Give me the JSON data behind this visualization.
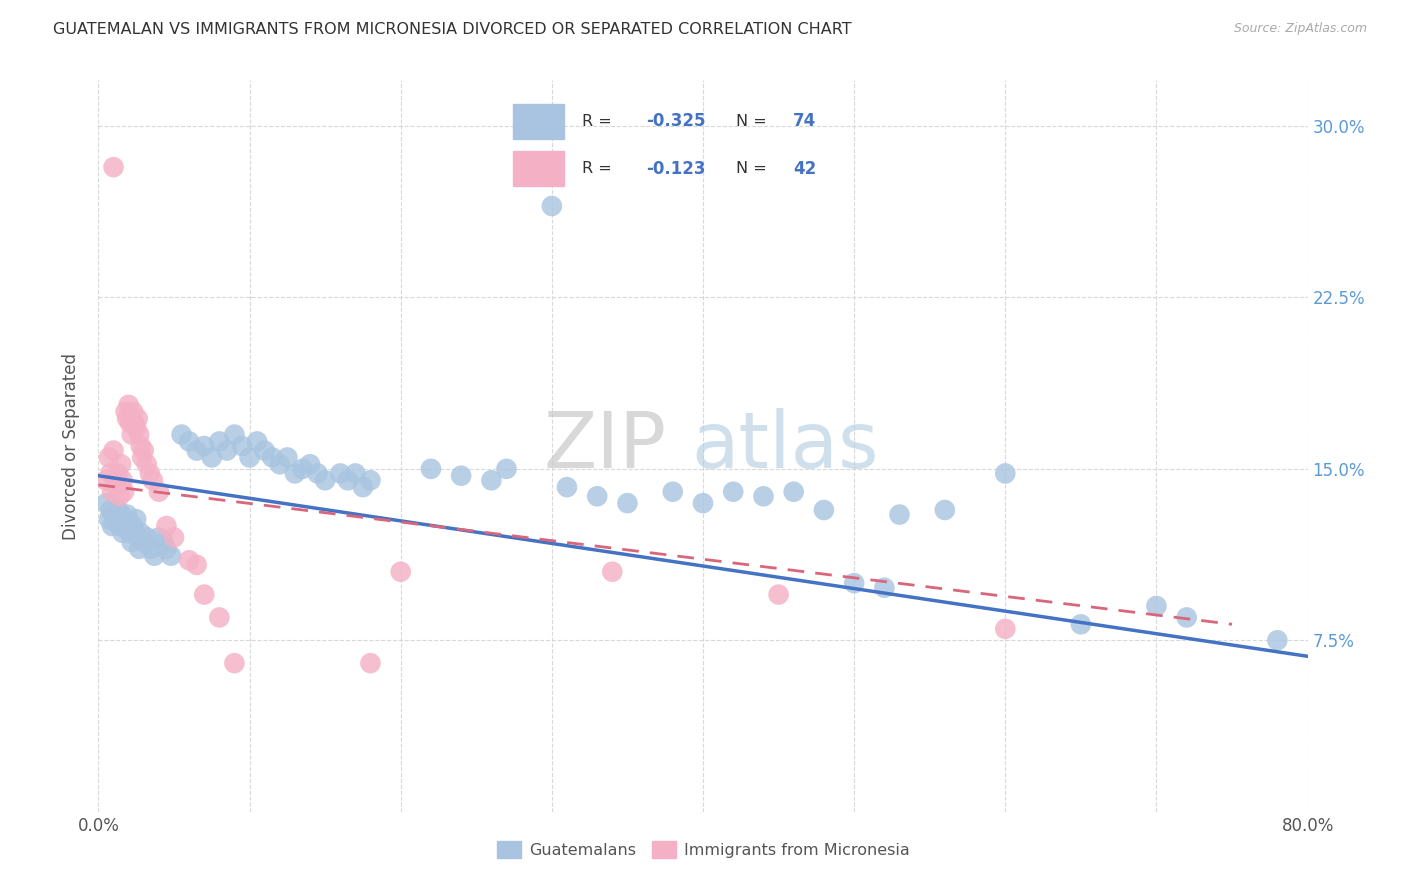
{
  "title": "GUATEMALAN VS IMMIGRANTS FROM MICRONESIA DIVORCED OR SEPARATED CORRELATION CHART",
  "source": "Source: ZipAtlas.com",
  "ylabel": "Divorced or Separated",
  "xlim": [
    0.0,
    0.8
  ],
  "ylim": [
    0.0,
    0.32
  ],
  "grid_color": "#d8d8d8",
  "background_color": "#ffffff",
  "blue_color": "#a8c4e0",
  "pink_color": "#f4b0c4",
  "blue_line_color": "#4472c4",
  "pink_line_color": "#d9667a",
  "blue_line_x": [
    0.0,
    0.8
  ],
  "blue_line_y": [
    0.147,
    0.068
  ],
  "pink_line_x": [
    0.0,
    0.75
  ],
  "pink_line_y": [
    0.143,
    0.082
  ],
  "blue_scatter": [
    [
      0.005,
      0.135
    ],
    [
      0.007,
      0.128
    ],
    [
      0.008,
      0.132
    ],
    [
      0.009,
      0.125
    ],
    [
      0.01,
      0.13
    ],
    [
      0.011,
      0.127
    ],
    [
      0.012,
      0.128
    ],
    [
      0.013,
      0.132
    ],
    [
      0.014,
      0.125
    ],
    [
      0.015,
      0.13
    ],
    [
      0.016,
      0.122
    ],
    [
      0.017,
      0.128
    ],
    [
      0.018,
      0.124
    ],
    [
      0.019,
      0.13
    ],
    [
      0.02,
      0.127
    ],
    [
      0.021,
      0.122
    ],
    [
      0.022,
      0.118
    ],
    [
      0.023,
      0.125
    ],
    [
      0.025,
      0.128
    ],
    [
      0.026,
      0.12
    ],
    [
      0.027,
      0.115
    ],
    [
      0.028,
      0.122
    ],
    [
      0.03,
      0.118
    ],
    [
      0.032,
      0.12
    ],
    [
      0.035,
      0.115
    ],
    [
      0.037,
      0.112
    ],
    [
      0.04,
      0.12
    ],
    [
      0.043,
      0.118
    ],
    [
      0.045,
      0.115
    ],
    [
      0.048,
      0.112
    ],
    [
      0.055,
      0.165
    ],
    [
      0.06,
      0.162
    ],
    [
      0.065,
      0.158
    ],
    [
      0.07,
      0.16
    ],
    [
      0.075,
      0.155
    ],
    [
      0.08,
      0.162
    ],
    [
      0.085,
      0.158
    ],
    [
      0.09,
      0.165
    ],
    [
      0.095,
      0.16
    ],
    [
      0.1,
      0.155
    ],
    [
      0.105,
      0.162
    ],
    [
      0.11,
      0.158
    ],
    [
      0.115,
      0.155
    ],
    [
      0.12,
      0.152
    ],
    [
      0.125,
      0.155
    ],
    [
      0.13,
      0.148
    ],
    [
      0.135,
      0.15
    ],
    [
      0.14,
      0.152
    ],
    [
      0.145,
      0.148
    ],
    [
      0.15,
      0.145
    ],
    [
      0.16,
      0.148
    ],
    [
      0.165,
      0.145
    ],
    [
      0.17,
      0.148
    ],
    [
      0.175,
      0.142
    ],
    [
      0.18,
      0.145
    ],
    [
      0.22,
      0.15
    ],
    [
      0.24,
      0.147
    ],
    [
      0.26,
      0.145
    ],
    [
      0.27,
      0.15
    ],
    [
      0.3,
      0.265
    ],
    [
      0.31,
      0.142
    ],
    [
      0.33,
      0.138
    ],
    [
      0.35,
      0.135
    ],
    [
      0.38,
      0.14
    ],
    [
      0.4,
      0.135
    ],
    [
      0.42,
      0.14
    ],
    [
      0.44,
      0.138
    ],
    [
      0.46,
      0.14
    ],
    [
      0.48,
      0.132
    ],
    [
      0.5,
      0.1
    ],
    [
      0.52,
      0.098
    ],
    [
      0.53,
      0.13
    ],
    [
      0.56,
      0.132
    ],
    [
      0.6,
      0.148
    ],
    [
      0.65,
      0.082
    ],
    [
      0.7,
      0.09
    ],
    [
      0.72,
      0.085
    ],
    [
      0.78,
      0.075
    ]
  ],
  "pink_scatter": [
    [
      0.005,
      0.145
    ],
    [
      0.007,
      0.155
    ],
    [
      0.008,
      0.148
    ],
    [
      0.009,
      0.14
    ],
    [
      0.01,
      0.158
    ],
    [
      0.011,
      0.145
    ],
    [
      0.012,
      0.142
    ],
    [
      0.013,
      0.148
    ],
    [
      0.014,
      0.138
    ],
    [
      0.015,
      0.152
    ],
    [
      0.016,
      0.145
    ],
    [
      0.017,
      0.14
    ],
    [
      0.018,
      0.175
    ],
    [
      0.019,
      0.172
    ],
    [
      0.02,
      0.178
    ],
    [
      0.021,
      0.17
    ],
    [
      0.022,
      0.165
    ],
    [
      0.023,
      0.175
    ],
    [
      0.024,
      0.17
    ],
    [
      0.025,
      0.168
    ],
    [
      0.026,
      0.172
    ],
    [
      0.027,
      0.165
    ],
    [
      0.028,
      0.16
    ],
    [
      0.029,
      0.155
    ],
    [
      0.03,
      0.158
    ],
    [
      0.032,
      0.152
    ],
    [
      0.034,
      0.148
    ],
    [
      0.036,
      0.145
    ],
    [
      0.04,
      0.14
    ],
    [
      0.045,
      0.125
    ],
    [
      0.05,
      0.12
    ],
    [
      0.06,
      0.11
    ],
    [
      0.065,
      0.108
    ],
    [
      0.07,
      0.095
    ],
    [
      0.08,
      0.085
    ],
    [
      0.01,
      0.282
    ],
    [
      0.09,
      0.065
    ],
    [
      0.18,
      0.065
    ],
    [
      0.2,
      0.105
    ],
    [
      0.34,
      0.105
    ],
    [
      0.45,
      0.095
    ],
    [
      0.6,
      0.08
    ]
  ]
}
